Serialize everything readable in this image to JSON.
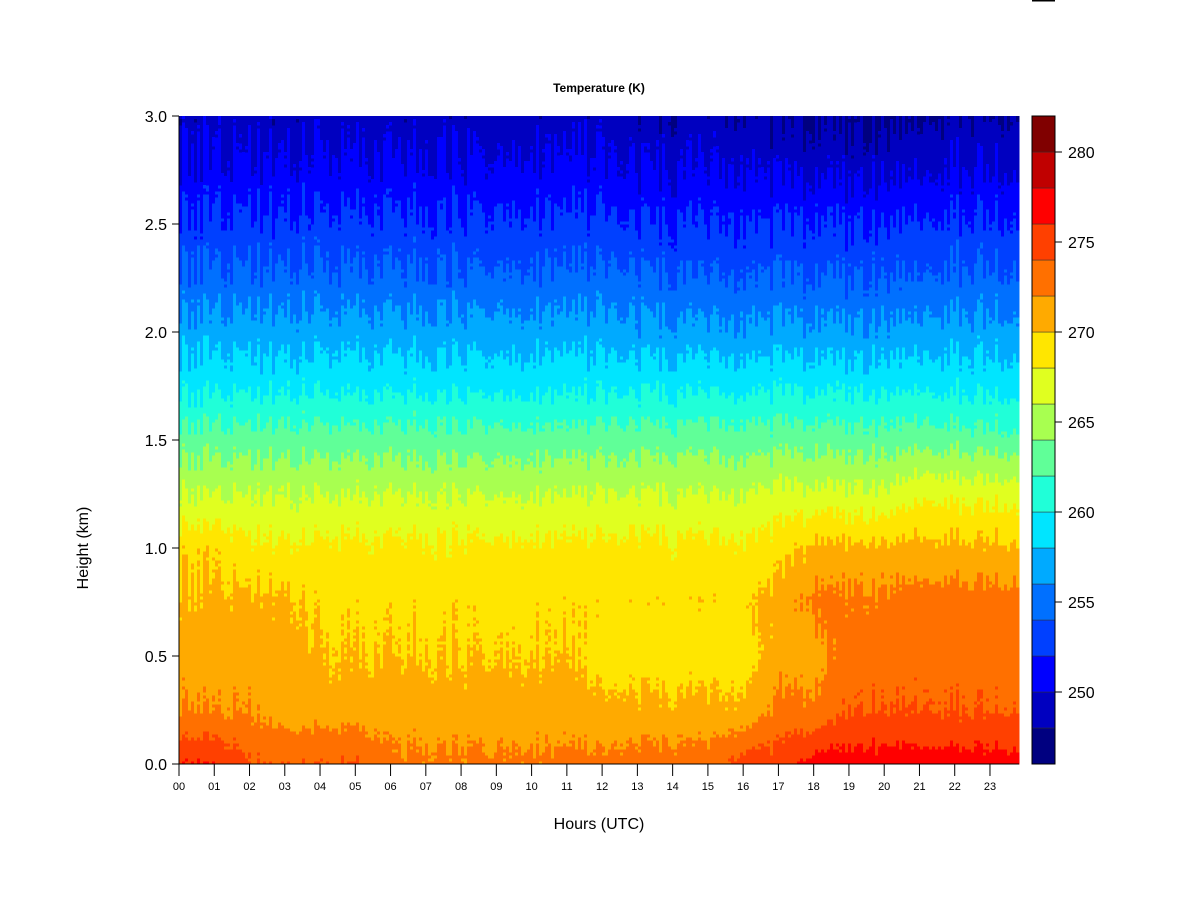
{
  "chart_data": {
    "type": "heatmap",
    "title": "Temperature (K)",
    "xlabel": "Hours (UTC)",
    "ylabel": "Height (km)",
    "xlim": [
      0,
      23.83
    ],
    "ylim": [
      0,
      3.0
    ],
    "x_ticks": [
      "00",
      "01",
      "02",
      "03",
      "04",
      "05",
      "06",
      "07",
      "08",
      "09",
      "10",
      "11",
      "12",
      "13",
      "14",
      "15",
      "16",
      "17",
      "18",
      "19",
      "20",
      "21",
      "22",
      "23"
    ],
    "y_ticks": [
      "0.0",
      "0.5",
      "1.0",
      "1.5",
      "2.0",
      "2.5",
      "3.0"
    ],
    "hours": [
      0,
      1,
      2,
      3,
      4,
      5,
      6,
      7,
      8,
      9,
      10,
      11,
      12,
      13,
      14,
      15,
      16,
      17,
      18,
      19,
      20,
      21,
      22,
      23
    ],
    "heights_km": [
      0,
      0.25,
      0.5,
      0.75,
      1.0,
      1.25,
      1.5,
      1.75,
      2.0,
      2.25,
      2.5,
      2.75,
      3.0
    ],
    "values": [
      [
        276,
        276,
        274,
        274,
        274,
        274,
        272.5,
        272.5,
        272.5,
        272.5,
        272.5,
        272.5,
        272.5,
        273,
        273,
        273,
        275,
        275,
        277,
        277,
        277,
        277,
        277,
        277
      ],
      [
        272,
        272,
        272,
        271,
        271,
        271,
        271,
        271,
        271,
        271,
        271,
        271,
        270.5,
        270.5,
        270.5,
        270.5,
        270.5,
        272.5,
        272.5,
        274,
        274,
        274,
        274,
        274
      ],
      [
        271,
        271,
        271,
        271,
        270,
        270,
        270,
        270,
        270,
        270,
        270,
        270,
        269,
        269,
        269,
        269,
        269,
        271,
        271,
        273,
        273,
        273,
        273,
        273
      ],
      [
        270.5,
        270.5,
        270.5,
        270.5,
        269.5,
        269.5,
        269.5,
        269.5,
        269.5,
        269.5,
        269.5,
        269.5,
        269.5,
        269.5,
        269.5,
        269.5,
        269.5,
        271,
        272.5,
        272.5,
        272.5,
        273,
        273,
        273
      ],
      [
        269.5,
        269.5,
        268.5,
        268.5,
        268.5,
        268.5,
        268.5,
        268.5,
        268.5,
        268.5,
        268.5,
        268.5,
        268.5,
        268.5,
        268.5,
        268.5,
        268.5,
        269,
        270.5,
        270.5,
        270.5,
        270.5,
        270.5,
        270.5
      ],
      [
        266,
        266,
        266,
        266,
        266,
        266,
        266,
        266,
        266,
        266,
        266,
        266,
        266,
        266,
        266,
        266,
        266,
        266.5,
        266.5,
        266.5,
        266.5,
        267.5,
        267.5,
        267.5
      ],
      [
        263,
        263,
        263,
        263,
        263,
        263,
        263,
        263,
        263,
        263,
        263,
        263,
        263,
        263,
        263,
        263,
        263,
        263,
        263,
        263,
        263,
        263,
        263,
        263
      ],
      [
        259.5,
        259.5,
        259.5,
        259.5,
        259.5,
        259.5,
        259.5,
        259.5,
        259.5,
        259.5,
        259.5,
        259.5,
        259.5,
        259.5,
        259.5,
        259.5,
        259.5,
        259.5,
        259.5,
        259.5,
        259.5,
        259.5,
        259.5,
        259.5
      ],
      [
        257,
        257,
        257,
        257,
        257,
        257,
        257,
        257,
        257,
        257,
        257,
        257,
        257,
        256.5,
        256.5,
        256.5,
        256.5,
        256.5,
        256.5,
        256.5,
        256.5,
        256.5,
        257,
        257
      ],
      [
        254.5,
        254.5,
        254.5,
        254.5,
        254.5,
        254.5,
        254.5,
        254.5,
        254.5,
        254.5,
        254.5,
        254.5,
        254.5,
        254.5,
        254,
        254,
        254,
        254,
        254,
        254,
        254,
        254,
        254.5,
        254.5
      ],
      [
        252.5,
        252.5,
        252.5,
        252.5,
        252.5,
        252.5,
        252.5,
        252.5,
        252.5,
        252.5,
        252.5,
        252.5,
        252.5,
        252,
        252,
        252,
        252,
        252,
        252,
        252,
        252,
        252,
        252.5,
        252.5
      ],
      [
        250.5,
        250.5,
        250.5,
        250.5,
        250.5,
        250.5,
        250.5,
        250.5,
        250.5,
        250.5,
        250.5,
        250.5,
        250.5,
        250,
        250,
        250,
        250,
        249.5,
        249.5,
        249.5,
        249.5,
        249.5,
        250,
        250
      ],
      [
        249,
        249,
        249,
        249,
        249,
        249,
        249,
        249,
        249,
        249,
        249,
        249,
        249,
        248.5,
        248.5,
        248.5,
        248.5,
        247.5,
        247.5,
        247.5,
        247.5,
        247.5,
        248.5,
        248.5
      ]
    ],
    "colorbar": {
      "levels_min": 246,
      "levels_max": 282,
      "step": 2,
      "tick_labels": [
        "250",
        "255",
        "260",
        "265",
        "270",
        "275",
        "280"
      ],
      "tick_values": [
        250,
        255,
        260,
        265,
        270,
        275,
        280
      ],
      "colors": [
        "#000080",
        "#0000c0",
        "#0000ff",
        "#0040ff",
        "#0070ff",
        "#00aaff",
        "#00e5ff",
        "#20ffd8",
        "#60ff98",
        "#a8ff50",
        "#e0ff20",
        "#ffe600",
        "#ffaa00",
        "#ff7000",
        "#ff4000",
        "#ff0000",
        "#c00000",
        "#800000"
      ]
    }
  }
}
